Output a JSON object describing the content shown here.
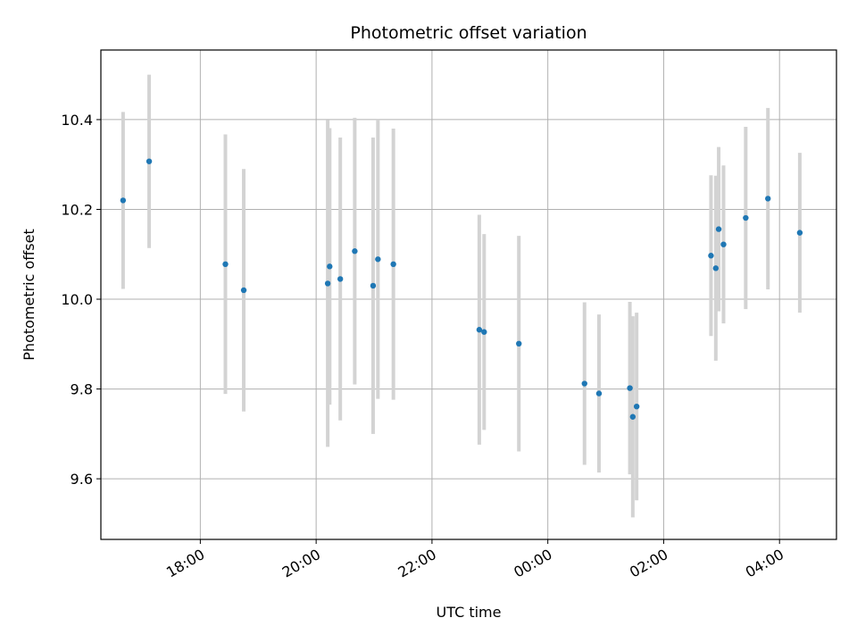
{
  "chart_data": {
    "type": "scatter",
    "title": "Photometric offset variation",
    "xlabel": "UTC time",
    "ylabel": "Photometric offset",
    "x_axis": "time",
    "xlim": [
      "2000-01-01T16:17:00",
      "2000-01-02T04:59:00"
    ],
    "ylim": [
      9.465,
      10.555
    ],
    "x_ticks": [
      {
        "t": "2000-01-01T18:00:00",
        "label": "18:00"
      },
      {
        "t": "2000-01-01T20:00:00",
        "label": "20:00"
      },
      {
        "t": "2000-01-01T22:00:00",
        "label": "22:00"
      },
      {
        "t": "2000-01-02T00:00:00",
        "label": "00:00"
      },
      {
        "t": "2000-01-02T02:00:00",
        "label": "02:00"
      },
      {
        "t": "2000-01-02T04:00:00",
        "label": "04:00"
      }
    ],
    "y_ticks": [
      {
        "v": 9.6,
        "label": "9.6"
      },
      {
        "v": 9.8,
        "label": "9.8"
      },
      {
        "v": 10.0,
        "label": "10.0"
      },
      {
        "v": 10.2,
        "label": "10.2"
      },
      {
        "v": 10.4,
        "label": "10.4"
      }
    ],
    "grid": true,
    "colors": {
      "marker": "#1f77b4",
      "errorbar": "#d3d3d3",
      "grid": "#b0b0b0"
    },
    "points": [
      {
        "t": "2000-01-01T16:40:00",
        "y": 10.22,
        "err": 0.197
      },
      {
        "t": "2000-01-01T17:07:00",
        "y": 10.307,
        "err": 0.193
      },
      {
        "t": "2000-01-01T18:26:00",
        "y": 10.078,
        "err": 0.289
      },
      {
        "t": "2000-01-01T18:45:00",
        "y": 10.02,
        "err": 0.27
      },
      {
        "t": "2000-01-01T20:12:00",
        "y": 10.035,
        "err": 0.364
      },
      {
        "t": "2000-01-01T20:14:00",
        "y": 10.073,
        "err": 0.308
      },
      {
        "t": "2000-01-01T20:25:00",
        "y": 10.045,
        "err": 0.315
      },
      {
        "t": "2000-01-01T20:40:00",
        "y": 10.107,
        "err": 0.297
      },
      {
        "t": "2000-01-01T20:59:00",
        "y": 10.03,
        "err": 0.33
      },
      {
        "t": "2000-01-01T21:04:00",
        "y": 10.089,
        "err": 0.311
      },
      {
        "t": "2000-01-01T21:20:00",
        "y": 10.078,
        "err": 0.302
      },
      {
        "t": "2000-01-01T22:49:00",
        "y": 9.932,
        "err": 0.256
      },
      {
        "t": "2000-01-01T22:54:00",
        "y": 9.927,
        "err": 0.218
      },
      {
        "t": "2000-01-01T23:30:00",
        "y": 9.901,
        "err": 0.24
      },
      {
        "t": "2000-01-02T00:38:00",
        "y": 9.812,
        "err": 0.181
      },
      {
        "t": "2000-01-02T00:53:00",
        "y": 9.79,
        "err": 0.176
      },
      {
        "t": "2000-01-02T01:25:00",
        "y": 9.802,
        "err": 0.192
      },
      {
        "t": "2000-01-02T01:28:00",
        "y": 9.738,
        "err": 0.224
      },
      {
        "t": "2000-01-02T01:32:00",
        "y": 9.761,
        "err": 0.209
      },
      {
        "t": "2000-01-02T02:49:00",
        "y": 10.097,
        "err": 0.179
      },
      {
        "t": "2000-01-02T02:54:00",
        "y": 10.069,
        "err": 0.206
      },
      {
        "t": "2000-01-02T02:57:00",
        "y": 10.156,
        "err": 0.183
      },
      {
        "t": "2000-01-02T03:02:00",
        "y": 10.122,
        "err": 0.176
      },
      {
        "t": "2000-01-02T03:25:00",
        "y": 10.181,
        "err": 0.203
      },
      {
        "t": "2000-01-02T03:48:00",
        "y": 10.224,
        "err": 0.202
      },
      {
        "t": "2000-01-02T04:21:00",
        "y": 10.148,
        "err": 0.178
      }
    ]
  }
}
